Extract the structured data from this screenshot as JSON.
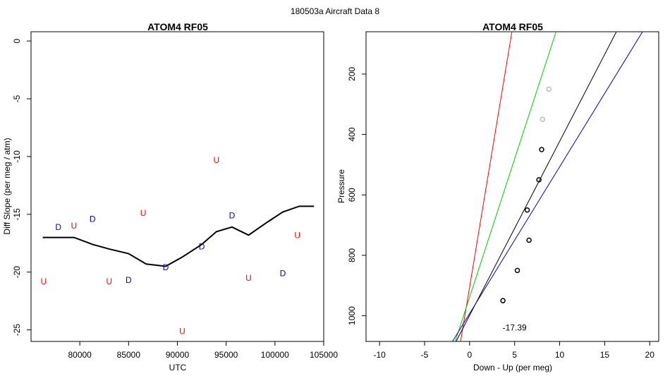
{
  "figure": {
    "main_title": "180503a   Aircraft Data 8"
  },
  "chart_data": [
    {
      "type": "scatter",
      "title": "ATOM4 RF05",
      "xlabel": "UTC",
      "ylabel": "Diff Slope (per meg / atm)",
      "xlim": [
        75000,
        105000
      ],
      "ylim": [
        -26,
        0.8
      ],
      "x_ticks": [
        80000,
        85000,
        90000,
        95000,
        100000,
        105000
      ],
      "y_ticks": [
        0,
        -5,
        -10,
        -15,
        -20,
        -25
      ],
      "colors": {
        "U": "#ff0000",
        "D": "#0000cc",
        "line": "#000000"
      },
      "points": [
        {
          "x": 76300,
          "y": -20.8,
          "label": "U"
        },
        {
          "x": 77800,
          "y": -16.1,
          "label": "D"
        },
        {
          "x": 79400,
          "y": -16.0,
          "label": "U"
        },
        {
          "x": 81300,
          "y": -15.4,
          "label": "D"
        },
        {
          "x": 83000,
          "y": -20.8,
          "label": "U"
        },
        {
          "x": 85000,
          "y": -20.7,
          "label": "D"
        },
        {
          "x": 86500,
          "y": -14.9,
          "label": "U"
        },
        {
          "x": 88800,
          "y": -19.6,
          "label": "D"
        },
        {
          "x": 90500,
          "y": -25.1,
          "label": "U"
        },
        {
          "x": 92500,
          "y": -17.8,
          "label": "D"
        },
        {
          "x": 94000,
          "y": -10.3,
          "label": "U"
        },
        {
          "x": 95600,
          "y": -15.1,
          "label": "D"
        },
        {
          "x": 97300,
          "y": -20.5,
          "label": "U"
        },
        {
          "x": 100800,
          "y": -20.1,
          "label": "D"
        },
        {
          "x": 102300,
          "y": -16.8,
          "label": "U"
        }
      ],
      "line": {
        "x": [
          76200,
          79400,
          81300,
          83000,
          85000,
          86800,
          88800,
          90500,
          92500,
          94000,
          95600,
          97300,
          99000,
          100800,
          102500,
          104000
        ],
        "y": [
          -17.0,
          -17.0,
          -17.6,
          -18.0,
          -18.4,
          -19.3,
          -19.5,
          -18.7,
          -17.6,
          -16.5,
          -16.1,
          -16.8,
          -15.8,
          -14.8,
          -14.3,
          -14.3
        ]
      }
    },
    {
      "type": "scatter",
      "title": "ATOM4 RF05",
      "xlabel": "Down - Up (per meg)",
      "ylabel": "Pressure",
      "xlim": [
        -11.5,
        21
      ],
      "ylim": [
        1085,
        60
      ],
      "y_reversed": true,
      "x_ticks": [
        -10,
        -5,
        0,
        5,
        10,
        15,
        20
      ],
      "y_ticks": [
        200,
        400,
        600,
        800,
        1000
      ],
      "annotation": "-17.39",
      "annotation_pos": {
        "x": 5.0,
        "y": 1040
      },
      "points": [
        {
          "x": 8.8,
          "y": 250,
          "color": "#bbbbbb"
        },
        {
          "x": 8.1,
          "y": 350,
          "color": "#bbbbbb"
        },
        {
          "x": 8.0,
          "y": 450,
          "color": "#000000"
        },
        {
          "x": 7.7,
          "y": 550,
          "color": "#000000"
        },
        {
          "x": 6.4,
          "y": 650,
          "color": "#000000"
        },
        {
          "x": 6.6,
          "y": 750,
          "color": "#000000"
        },
        {
          "x": 5.3,
          "y": 850,
          "color": "#000000"
        },
        {
          "x": 3.7,
          "y": 950,
          "color": "#000000"
        }
      ],
      "lines": [
        {
          "color": "#ff0000",
          "x": [
            -1.0,
            4.7
          ],
          "y": [
            1085,
            60
          ]
        },
        {
          "color": "#00cc00",
          "x": [
            -1.6,
            9.6
          ],
          "y": [
            1085,
            60
          ]
        },
        {
          "color": "#000000",
          "x": [
            -1.5,
            16.3
          ],
          "y": [
            1085,
            60
          ]
        },
        {
          "color": "#0000cc",
          "x": [
            -1.9,
            19.2
          ],
          "y": [
            1085,
            60
          ]
        }
      ]
    }
  ]
}
